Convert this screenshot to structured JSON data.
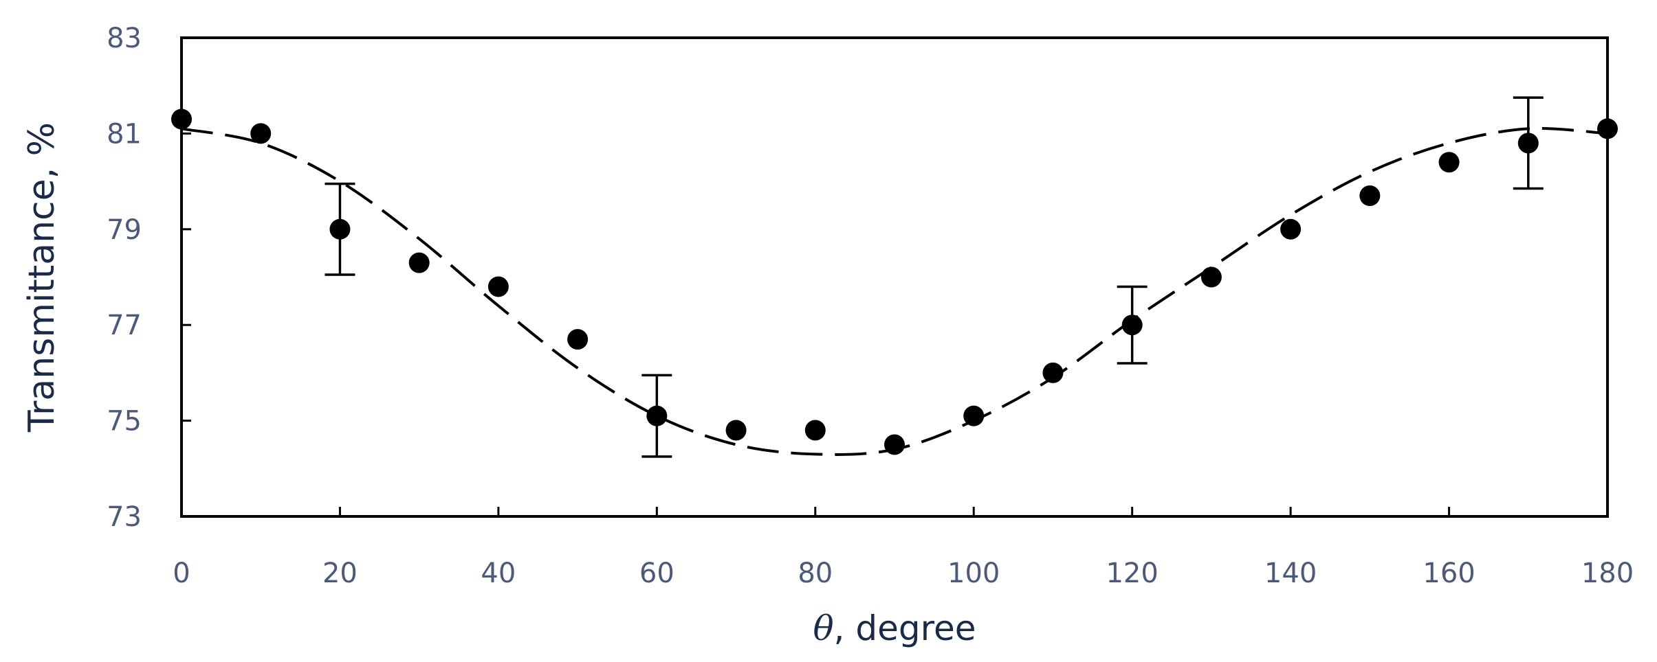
{
  "chart_data": {
    "type": "scatter",
    "xlabel_symbol": "θ",
    "xlabel_text": ", degree",
    "ylabel": "Transmittance, %",
    "xlim": [
      0,
      180
    ],
    "ylim": [
      73,
      83
    ],
    "xticks": [
      "0",
      "20",
      "40",
      "60",
      "80",
      "100",
      "120",
      "140",
      "160",
      "180"
    ],
    "yticks": [
      "73",
      "75",
      "77",
      "79",
      "81",
      "83"
    ],
    "grid": false,
    "legend": "none",
    "series": [
      {
        "marker": "filled-circle",
        "x": [
          0,
          10,
          20,
          30,
          40,
          50,
          60,
          70,
          80,
          90,
          100,
          110,
          120,
          130,
          140,
          150,
          160,
          170,
          180
        ],
        "y": [
          81.3,
          81.0,
          79.0,
          78.3,
          77.8,
          76.7,
          75.1,
          74.8,
          74.8,
          74.5,
          75.1,
          76.0,
          77.0,
          78.0,
          79.0,
          79.7,
          80.4,
          80.8,
          81.1
        ],
        "error": [
          null,
          null,
          0.95,
          null,
          null,
          null,
          0.85,
          null,
          null,
          null,
          null,
          null,
          0.8,
          null,
          null,
          null,
          null,
          0.95,
          null
        ]
      },
      {
        "style": "dashed-line",
        "x": [
          0,
          10,
          20,
          30,
          40,
          50,
          60,
          70,
          80,
          90,
          100,
          110,
          120,
          130,
          140,
          150,
          160,
          170,
          180
        ],
        "y": [
          81.1,
          80.8,
          80.0,
          78.8,
          77.4,
          76.1,
          75.1,
          74.5,
          74.3,
          74.4,
          75.0,
          75.9,
          77.1,
          78.2,
          79.3,
          80.2,
          80.8,
          81.1,
          81.0
        ]
      }
    ]
  }
}
